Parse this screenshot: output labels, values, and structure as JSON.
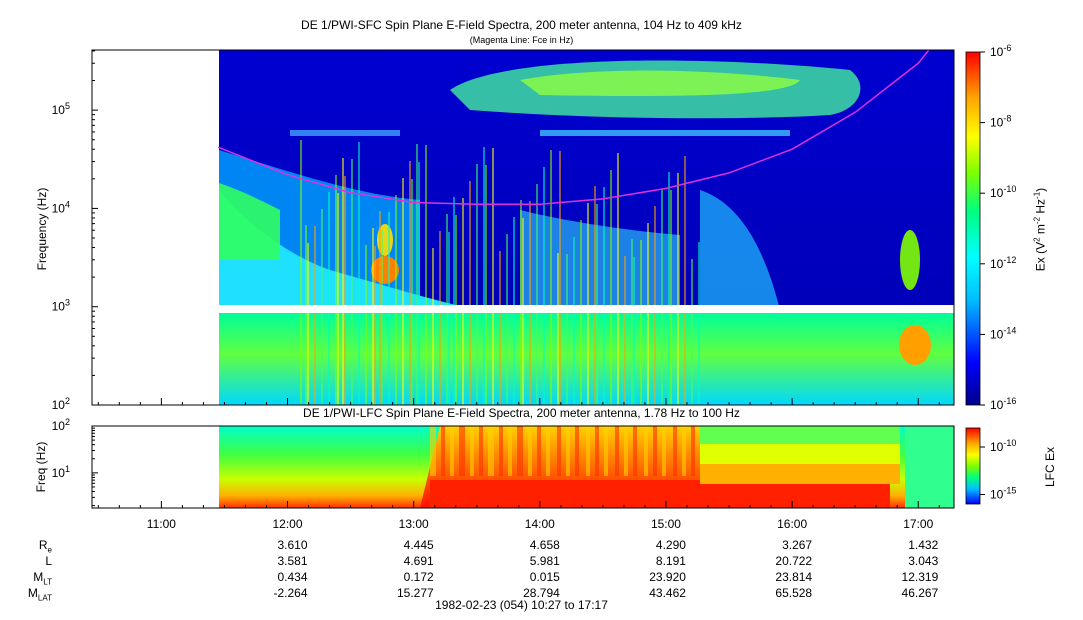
{
  "chart_data": [
    {
      "type": "heatmap",
      "title": "DE 1/PWI-SFC  Spin Plane E-Field Spectra, 200 meter antenna, 104 Hz to 409 kHz",
      "subtitle": "(Magenta Line: Fce in Hz)",
      "ylabel": "Frequency (Hz)",
      "yscale": "log",
      "ylim": [
        100,
        409000
      ],
      "yticks": [
        {
          "v": 100,
          "b": "10",
          "e": "2"
        },
        {
          "v": 1000,
          "b": "10",
          "e": "3"
        },
        {
          "v": 10000,
          "b": "10",
          "e": "4"
        },
        {
          "v": 100000,
          "b": "10",
          "e": "5"
        }
      ],
      "colorbar": {
        "label_pre": "Ex (V",
        "label_mid": " m",
        "label_post": " Hz",
        "label_end": ")",
        "sup1": "2",
        "sup2": "-2",
        "sup3": "-1",
        "scale": "log",
        "range": [
          1e-16,
          1e-06
        ],
        "ticks": [
          {
            "v": -6,
            "b": "10",
            "e": "-6"
          },
          {
            "v": -8,
            "b": "10",
            "e": "-8"
          },
          {
            "v": -10,
            "b": "10",
            "e": "-10"
          },
          {
            "v": -12,
            "b": "10",
            "e": "-12"
          },
          {
            "v": -14,
            "b": "10",
            "e": "-14"
          },
          {
            "v": -16,
            "b": "10",
            "e": "-16"
          }
        ]
      },
      "data_start": "11:27",
      "fce_line": {
        "color": "#e030e0",
        "x": [
          "11:27",
          "12:00",
          "12:30",
          "13:00",
          "13:30",
          "14:00",
          "14:30",
          "15:00",
          "15:30",
          "16:00",
          "16:30",
          "17:00",
          "17:05"
        ],
        "y": [
          42000,
          22000,
          14500,
          11500,
          11000,
          11000,
          12500,
          16000,
          23000,
          40000,
          95000,
          300000,
          409000
        ]
      },
      "colors": [
        "#00008b",
        "#0000ff",
        "#00bfff",
        "#00ffff",
        "#00ff7f",
        "#7fff00",
        "#ffff00",
        "#ffa500",
        "#ff0000"
      ]
    },
    {
      "type": "heatmap",
      "title": "DE 1/PWI-LFC  Spin Plane E-Field Spectra, 200 meter antenna, 1.78 Hz to 100 Hz",
      "ylabel": "Freq (Hz)",
      "yscale": "log",
      "ylim": [
        1.78,
        100
      ],
      "yticks": [
        {
          "v": 10,
          "b": "10",
          "e": "1"
        },
        {
          "v": 100,
          "b": "10",
          "e": "2"
        }
      ],
      "colorbar": {
        "label": "LFC Ex",
        "scale": "log",
        "range": [
          1e-16,
          1e-08
        ],
        "ticks": [
          {
            "v": -10,
            "b": "10",
            "e": "-10"
          },
          {
            "v": -15,
            "b": "10",
            "e": "-15"
          }
        ]
      },
      "data_start": "11:27"
    }
  ],
  "time_axis": {
    "range": [
      "10:27",
      "17:17"
    ],
    "major_ticks": [
      "11:00",
      "12:00",
      "13:00",
      "14:00",
      "15:00",
      "16:00",
      "17:00"
    ]
  },
  "ephemeris": {
    "rows": [
      {
        "label": "R",
        "sub": "e",
        "values": [
          "3.610",
          "4.445",
          "4.658",
          "4.290",
          "3.267",
          "1.432"
        ]
      },
      {
        "label": "L",
        "sub": "",
        "values": [
          "3.581",
          "4.691",
          "5.981",
          "8.191",
          "20.722",
          "3.043"
        ]
      },
      {
        "label": "M",
        "sub": "LT",
        "values": [
          "0.434",
          "0.172",
          "0.015",
          "23.920",
          "23.814",
          "12.319"
        ]
      },
      {
        "label": "M",
        "sub": "LAT",
        "values": [
          "-2.264",
          "15.277",
          "28.794",
          "43.462",
          "65.528",
          "46.267"
        ]
      }
    ]
  },
  "footer": "1982-02-23 (054) 10:27 to 17:17"
}
